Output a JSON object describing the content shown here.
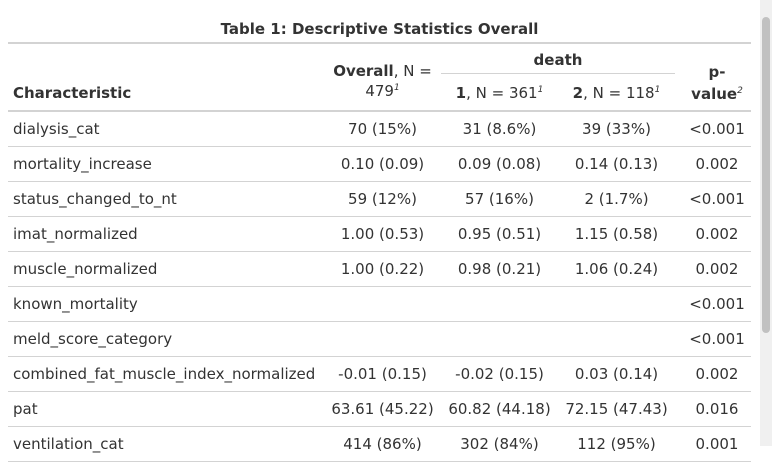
{
  "table": {
    "title": "Table 1: Descriptive Statistics Overall",
    "headers": {
      "characteristic": "Characteristic",
      "overall_bold": "Overall",
      "overall_rest": ", N =",
      "overall_n": "479",
      "spanner": "death",
      "group1_bold": "1",
      "group1_rest": ", N = 361",
      "group2_bold": "2",
      "group2_rest": ", N = 118",
      "pvalue_line1": "p-",
      "pvalue_line2": "value",
      "footnote_mark_1": "1",
      "footnote_mark_2": "2"
    },
    "rows": [
      {
        "label": "dialysis_cat",
        "overall": "70 (15%)",
        "g1": "31 (8.6%)",
        "g2": "39 (33%)",
        "p": "<0.001"
      },
      {
        "label": "mortality_increase",
        "overall": "0.10 (0.09)",
        "g1": "0.09 (0.08)",
        "g2": "0.14 (0.13)",
        "p": "0.002"
      },
      {
        "label": "status_changed_to_nt",
        "overall": "59 (12%)",
        "g1": "57 (16%)",
        "g2": "2 (1.7%)",
        "p": "<0.001"
      },
      {
        "label": "imat_normalized",
        "overall": "1.00 (0.53)",
        "g1": "0.95 (0.51)",
        "g2": "1.15 (0.58)",
        "p": "0.002"
      },
      {
        "label": "muscle_normalized",
        "overall": "1.00 (0.22)",
        "g1": "0.98 (0.21)",
        "g2": "1.06 (0.24)",
        "p": "0.002"
      },
      {
        "label": "known_mortality",
        "overall": "",
        "g1": "",
        "g2": "",
        "p": "<0.001"
      },
      {
        "label": "meld_score_category",
        "overall": "",
        "g1": "",
        "g2": "",
        "p": "<0.001"
      },
      {
        "label": "combined_fat_muscle_index_normalized",
        "overall": "-0.01 (0.15)",
        "g1": "-0.02 (0.15)",
        "g2": "0.03 (0.14)",
        "p": "0.002"
      },
      {
        "label": "pat",
        "overall": "63.61 (45.22)",
        "g1": "60.82 (44.18)",
        "g2": "72.15 (47.43)",
        "p": "0.016"
      },
      {
        "label": "ventilation_cat",
        "overall": "414 (86%)",
        "g1": "302 (84%)",
        "g2": "112 (95%)",
        "p": "0.001"
      }
    ]
  }
}
